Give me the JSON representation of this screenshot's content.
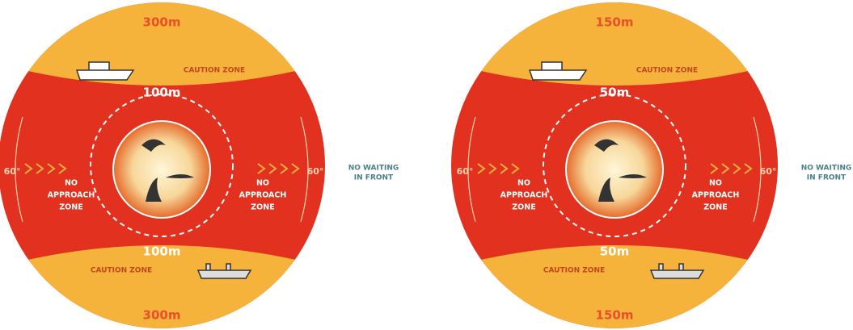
{
  "diagrams": [
    {
      "outer_top": "300m",
      "caution_top": "CAUTION ZONE",
      "inner_top": "100m",
      "angle_left": "60°",
      "no_approach_left": [
        "NO",
        "APPROACH",
        "ZONE"
      ],
      "no_approach_right": [
        "NO",
        "APPROACH",
        "ZONE"
      ],
      "angle_right": "60°",
      "inner_bottom": "100m",
      "caution_bottom": "CAUTION ZONE",
      "outer_bottom": "300m",
      "no_waiting": [
        "NO WAITING",
        "IN FRONT"
      ]
    },
    {
      "outer_top": "150m",
      "caution_top": "CAUTION ZONE",
      "inner_top": "50m",
      "angle_left": "60°",
      "no_approach_left": [
        "NO",
        "APPROACH",
        "ZONE"
      ],
      "no_approach_right": [
        "NO",
        "APPROACH",
        "ZONE"
      ],
      "angle_right": "60°",
      "inner_bottom": "50m",
      "caution_bottom": "CAUTION ZONE",
      "outer_bottom": "150m",
      "no_waiting": [
        "NO WAITING",
        "IN FRONT"
      ]
    }
  ]
}
